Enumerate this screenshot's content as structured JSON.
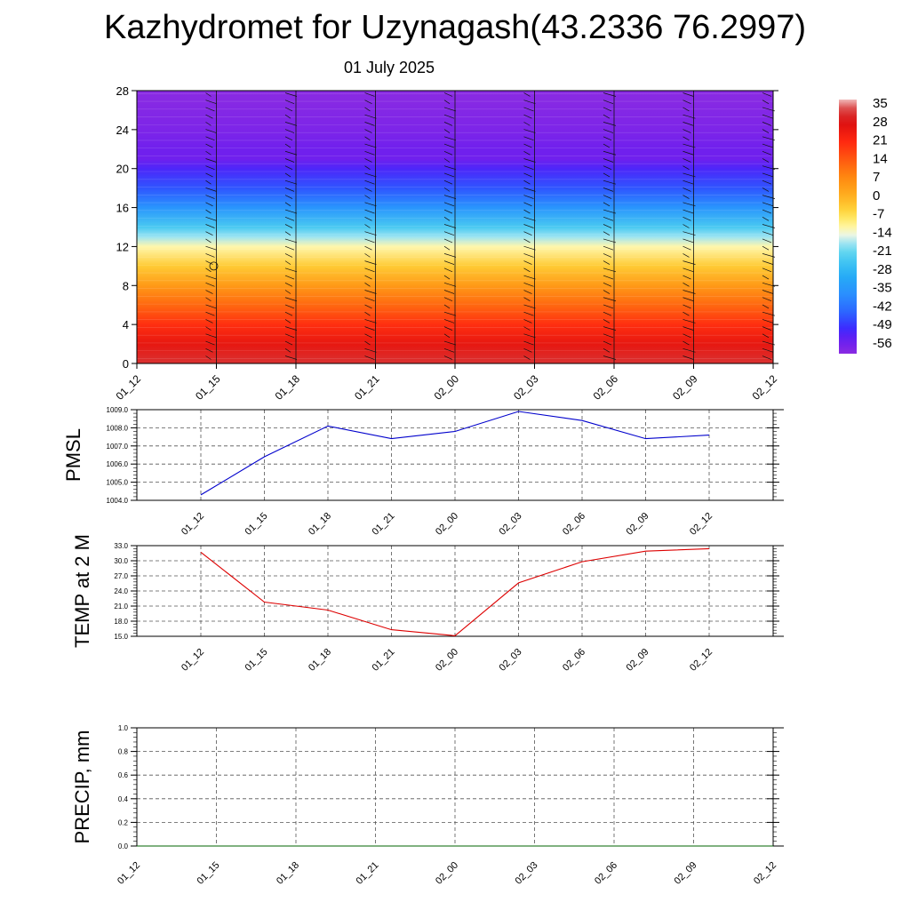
{
  "title": "Kazhydromet for Uzynagash(43.2336 76.2997)",
  "date": "01 July 2025",
  "colors": {
    "pmsl_line": "#0000cc",
    "temp_line": "#dd0000",
    "precip_line": "#006400",
    "axis": "#000000",
    "grid": "#555555"
  },
  "chart_data": [
    {
      "type": "heatmap",
      "name": "cross-section",
      "title": "",
      "xlabel": "",
      "ylabel": "",
      "x": [
        "01_12",
        "01_15",
        "01_18",
        "01_21",
        "02_00",
        "02_03",
        "02_06",
        "02_09",
        "02_12"
      ],
      "ylim": [
        0,
        28
      ],
      "yticks": [
        0,
        4,
        8,
        12,
        16,
        20,
        24,
        28
      ],
      "colorbar": {
        "labels": [
          "35",
          "28",
          "21",
          "14",
          "7",
          "0",
          "-7",
          "-14",
          "-21",
          "-28",
          "-35",
          "-42",
          "-49",
          "-56"
        ],
        "range": [
          -60,
          37
        ]
      },
      "temperature_profile": [
        {
          "y": 0,
          "value": 32
        },
        {
          "y": 2,
          "value": 26
        },
        {
          "y": 4,
          "value": 20
        },
        {
          "y": 6,
          "value": 12
        },
        {
          "y": 8,
          "value": 4
        },
        {
          "y": 10,
          "value": -4
        },
        {
          "y": 12,
          "value": -12
        },
        {
          "y": 13,
          "value": -18
        },
        {
          "y": 14,
          "value": -24
        },
        {
          "y": 16,
          "value": -36
        },
        {
          "y": 18,
          "value": -46
        },
        {
          "y": 20,
          "value": -52
        },
        {
          "y": 21,
          "value": -56
        },
        {
          "y": 22,
          "value": -56
        },
        {
          "y": 24,
          "value": -58
        },
        {
          "y": 28,
          "value": -60
        }
      ],
      "grid": false,
      "legend": "right"
    },
    {
      "type": "line",
      "name": "pmsl",
      "title": "",
      "xlabel": "",
      "ylabel": "PMSL",
      "categories": [
        "01_12",
        "01_15",
        "01_18",
        "01_21",
        "02_00",
        "02_03",
        "02_06",
        "02_09",
        "02_12"
      ],
      "values": [
        1004.3,
        1006.4,
        1008.1,
        1007.4,
        1007.8,
        1008.9,
        1008.4,
        1007.4,
        1007.6
      ],
      "ylim": [
        1004.0,
        1009.0
      ],
      "yticks": [
        "1004.0",
        "1005.0",
        "1006.0",
        "1007.0",
        "1008.0",
        "1009.0"
      ],
      "grid": true
    },
    {
      "type": "line",
      "name": "temp",
      "title": "",
      "xlabel": "",
      "ylabel": "TEMP at 2 M",
      "categories": [
        "01_12",
        "01_15",
        "01_18",
        "01_21",
        "02_00",
        "02_03",
        "02_06",
        "02_09",
        "02_12"
      ],
      "values": [
        31.7,
        21.8,
        20.2,
        16.3,
        15.1,
        25.6,
        29.8,
        31.9,
        32.4
      ],
      "ylim": [
        15.0,
        33.0
      ],
      "yticks": [
        "15.0",
        "18.0",
        "21.0",
        "24.0",
        "27.0",
        "30.0",
        "33.0"
      ],
      "grid": true
    },
    {
      "type": "line",
      "name": "precip",
      "title": "",
      "xlabel": "",
      "ylabel": "PRECIP, mm",
      "categories": [
        "01_12",
        "01_15",
        "01_18",
        "01_21",
        "02_00",
        "02_03",
        "02_06",
        "02_09",
        "02_12"
      ],
      "values": [
        0,
        0,
        0,
        0,
        0,
        0,
        0,
        0,
        0
      ],
      "ylim": [
        0.0,
        1.0
      ],
      "yticks": [
        "0.0",
        "0.2",
        "0.4",
        "0.6",
        "0.8",
        "1.0"
      ],
      "grid": true
    }
  ]
}
